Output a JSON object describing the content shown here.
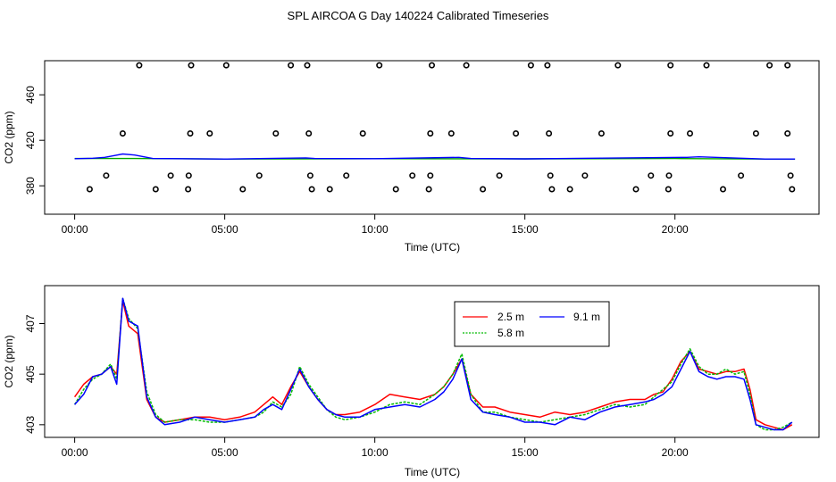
{
  "figure": {
    "title": "SPL AIRCOA G  Day 140224  Calibrated Timeseries",
    "background": "#ffffff"
  },
  "chart_data": [
    {
      "type": "scatter",
      "title": "",
      "xlabel": "Time (UTC)",
      "ylabel": "CO2 (ppm)",
      "xlim": [
        -1.0,
        24.8
      ],
      "ylim": [
        355,
        490
      ],
      "xticks": [
        0,
        5,
        10,
        15,
        20
      ],
      "xtick_labels": [
        "00:00",
        "05:00",
        "10:00",
        "15:00",
        "20:00"
      ],
      "yticks": [
        380,
        420,
        460
      ],
      "ytick_labels": [
        "380",
        "420",
        "460"
      ],
      "grid": false,
      "calibration_points": {
        "x": [
          2.15,
          3.88,
          5.05,
          7.2,
          7.75,
          10.15,
          11.9,
          13.05,
          15.2,
          15.75,
          18.1,
          19.85,
          21.05,
          23.15,
          23.75,
          1.6,
          3.85,
          4.5,
          6.7,
          7.8,
          9.6,
          11.85,
          12.55,
          14.7,
          15.8,
          17.55,
          19.85,
          20.5,
          22.7,
          23.75,
          1.05,
          3.2,
          3.8,
          6.15,
          7.85,
          9.05,
          11.25,
          11.85,
          14.15,
          15.85,
          17.0,
          19.2,
          19.8,
          22.2,
          23.85,
          0.5,
          2.7,
          3.78,
          5.6,
          7.9,
          8.5,
          10.7,
          11.8,
          13.6,
          15.9,
          16.5,
          18.7,
          19.78,
          21.6,
          23.9
        ],
        "y": [
          486,
          486,
          486,
          486,
          486,
          486,
          486,
          486,
          486,
          486,
          486,
          486,
          486,
          486,
          486,
          426,
          426,
          426,
          426,
          426,
          426,
          426,
          426,
          426,
          426,
          426,
          426,
          426,
          426,
          426,
          389,
          389,
          389,
          389,
          389,
          389,
          389,
          389,
          389,
          389,
          389,
          389,
          389,
          389,
          389,
          377,
          377,
          377,
          377,
          377,
          377,
          377,
          377,
          377,
          377,
          377,
          377,
          377,
          377,
          377
        ]
      },
      "series": [
        {
          "name": "green",
          "color": "#00aa00",
          "x": [
            0,
            2,
            5,
            10,
            15,
            20,
            23,
            24
          ],
          "y": [
            404,
            404,
            403.5,
            403.8,
            403.7,
            404,
            403.5,
            403.5
          ]
        },
        {
          "name": "blue",
          "color": "#0000ff",
          "x": [
            0,
            0.6,
            1.0,
            1.3,
            1.6,
            2.0,
            2.6,
            5,
            7.7,
            8.0,
            10,
            12.8,
            13.2,
            15,
            20.4,
            20.8,
            23,
            24
          ],
          "y": [
            403.8,
            404.2,
            405,
            406.5,
            408,
            407,
            404,
            403.5,
            404.5,
            404,
            403.8,
            405,
            404,
            403.7,
            405,
            405.5,
            403.5,
            403.5
          ]
        }
      ]
    },
    {
      "type": "line",
      "title": "",
      "xlabel": "Time (UTC)",
      "ylabel": "CO2 (ppm)",
      "xlim": [
        -1.0,
        24.8
      ],
      "ylim": [
        402.5,
        408.5
      ],
      "xticks": [
        0,
        5,
        10,
        15,
        20
      ],
      "xtick_labels": [
        "00:00",
        "05:00",
        "10:00",
        "15:00",
        "20:00"
      ],
      "yticks": [
        403,
        405,
        407
      ],
      "ytick_labels": [
        "403",
        "405",
        "407"
      ],
      "grid": false,
      "legend_position": "top-center",
      "x": [
        0.0,
        0.3,
        0.6,
        0.9,
        1.2,
        1.4,
        1.6,
        1.8,
        2.1,
        2.4,
        2.7,
        3.0,
        3.5,
        4.0,
        4.5,
        5.0,
        5.5,
        6.0,
        6.3,
        6.6,
        6.9,
        7.2,
        7.5,
        7.8,
        8.1,
        8.4,
        8.7,
        9.0,
        9.5,
        10.0,
        10.5,
        11.0,
        11.5,
        12.0,
        12.3,
        12.6,
        12.9,
        13.2,
        13.6,
        14.0,
        14.5,
        15.0,
        15.5,
        16.0,
        16.5,
        17.0,
        17.5,
        18.0,
        18.5,
        19.0,
        19.3,
        19.6,
        19.9,
        20.2,
        20.5,
        20.8,
        21.1,
        21.4,
        21.7,
        22.0,
        22.3,
        22.5,
        22.7,
        23.0,
        23.3,
        23.6,
        23.9
      ],
      "series": [
        {
          "name": "2.5 m",
          "color": "#ff0000",
          "values": [
            404.1,
            404.6,
            404.9,
            405.0,
            405.3,
            405.0,
            407.9,
            406.9,
            406.6,
            404.0,
            403.3,
            403.1,
            403.2,
            403.3,
            403.3,
            403.2,
            403.3,
            403.5,
            403.8,
            404.1,
            403.8,
            404.5,
            405.1,
            404.5,
            404.0,
            403.6,
            403.4,
            403.4,
            403.5,
            403.8,
            404.2,
            404.1,
            404.0,
            404.2,
            404.5,
            405.0,
            405.6,
            404.2,
            403.7,
            403.7,
            403.5,
            403.4,
            403.3,
            403.5,
            403.4,
            403.5,
            403.7,
            403.9,
            404.0,
            404.0,
            404.2,
            404.3,
            404.8,
            405.5,
            405.9,
            405.2,
            405.1,
            405.0,
            405.1,
            405.1,
            405.2,
            404.4,
            403.2,
            403.0,
            402.9,
            402.8,
            403.0
          ]
        },
        {
          "name": "5.8 m",
          "color": "#00bb00",
          "values": [
            403.8,
            404.4,
            404.8,
            405.0,
            405.4,
            404.8,
            408.0,
            407.2,
            406.8,
            404.3,
            403.4,
            403.1,
            403.2,
            403.2,
            403.1,
            403.1,
            403.2,
            403.3,
            403.5,
            403.9,
            403.7,
            404.2,
            405.3,
            404.6,
            404.1,
            403.6,
            403.3,
            403.2,
            403.3,
            403.5,
            403.8,
            403.9,
            403.8,
            404.2,
            404.5,
            405.0,
            405.8,
            404.2,
            403.5,
            403.5,
            403.3,
            403.2,
            403.1,
            403.2,
            403.3,
            403.4,
            403.6,
            403.8,
            403.7,
            403.8,
            404.1,
            404.4,
            404.7,
            405.4,
            406.0,
            405.3,
            405.0,
            405.0,
            405.2,
            405.0,
            405.1,
            404.2,
            403.0,
            402.8,
            402.8,
            402.9,
            403.1
          ]
        },
        {
          "name": "9.1 m",
          "color": "#0000ff",
          "values": [
            403.8,
            404.2,
            404.9,
            405.0,
            405.3,
            404.6,
            408.0,
            407.1,
            406.9,
            404.1,
            403.3,
            403.0,
            403.1,
            403.3,
            403.2,
            403.1,
            403.2,
            403.3,
            403.6,
            403.8,
            403.6,
            404.4,
            405.2,
            404.5,
            404.0,
            403.6,
            403.4,
            403.3,
            403.3,
            403.6,
            403.7,
            403.8,
            403.7,
            404.0,
            404.3,
            404.8,
            405.6,
            404.0,
            403.5,
            403.4,
            403.3,
            403.1,
            403.1,
            403.0,
            403.3,
            403.2,
            403.5,
            403.7,
            403.8,
            403.9,
            404.0,
            404.2,
            404.5,
            405.2,
            405.9,
            405.1,
            404.9,
            404.8,
            404.9,
            404.9,
            404.8,
            404.0,
            403.0,
            402.9,
            402.8,
            402.8,
            403.1
          ]
        }
      ]
    }
  ]
}
